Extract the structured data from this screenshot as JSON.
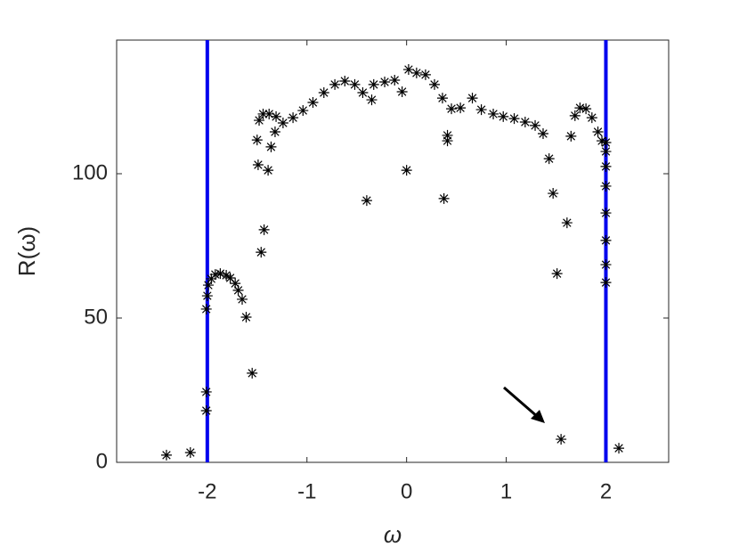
{
  "chart_data": {
    "type": "scatter",
    "xlabel": "ω",
    "ylabel": "R(ω)",
    "xlim": [
      -2.91,
      2.63
    ],
    "ylim": [
      0,
      146.3
    ],
    "xticks": [
      -2,
      -1,
      0,
      1,
      2
    ],
    "yticks": [
      0,
      50,
      100
    ],
    "marker": "asterisk",
    "color": "#000000",
    "vlines": [
      -2,
      2
    ],
    "vline_color": "#0000ee",
    "x": [
      -2.41,
      -2.17,
      -2.01,
      -2.01,
      1.55,
      2.13,
      -1.55,
      -1.61,
      -0.4,
      0,
      0.375,
      -1.39,
      -1.49,
      -1.46,
      -1.43,
      0.41,
      0.41,
      1.43,
      1.47,
      1.51,
      1.61,
      1.65,
      2.0,
      2.0,
      2.0,
      2.0,
      2.0,
      2.0,
      2.0,
      2.0,
      -2.01,
      -2.0,
      -1.99,
      -1.96,
      -1.92,
      -1.87,
      -1.81,
      -1.77,
      -1.72,
      -1.69,
      -1.65,
      -1.48,
      -1.44,
      -1.38,
      -1.31,
      -1.24,
      -1.14,
      -1.04,
      -0.94,
      -0.83,
      -0.72,
      -0.62,
      -0.52,
      -0.44,
      -0.35,
      -0.33,
      -0.22,
      -0.12,
      -0.045,
      0.02,
      0.1,
      0.19,
      0.28,
      0.36,
      0.45,
      0.54,
      0.66,
      0.75,
      0.87,
      0.97,
      1.08,
      1.19,
      1.29,
      1.37,
      1.69,
      1.74,
      1.8,
      1.86,
      1.92,
      1.96,
      -1.32,
      -1.36,
      -1.5
    ],
    "y": [
      2.5,
      3.4,
      17.9,
      24.4,
      8.0,
      4.9,
      30.9,
      50.3,
      90.7,
      101.2,
      91.4,
      101.2,
      103.1,
      72.8,
      80.6,
      113.3,
      111.4,
      105.2,
      93.2,
      65.4,
      83.0,
      113.0,
      102.5,
      95.7,
      86.4,
      76.9,
      68.5,
      62.3,
      110.8,
      107.7,
      53.1,
      57.7,
      61.4,
      63.6,
      65.1,
      65.4,
      64.8,
      63.9,
      62.0,
      59.6,
      56.5,
      118.5,
      120.7,
      120.7,
      119.8,
      117.6,
      119.4,
      121.9,
      124.7,
      128.1,
      130.9,
      132.1,
      130.9,
      128.1,
      125.6,
      130.9,
      131.8,
      132.4,
      128.4,
      136.1,
      134.9,
      134.3,
      130.9,
      126.2,
      122.5,
      122.8,
      126.2,
      122.2,
      120.7,
      119.8,
      119.1,
      117.9,
      116.7,
      113.9,
      120.1,
      122.8,
      122.5,
      119.4,
      114.5,
      111.4,
      114.5,
      109.3,
      111.7
    ]
  }
}
